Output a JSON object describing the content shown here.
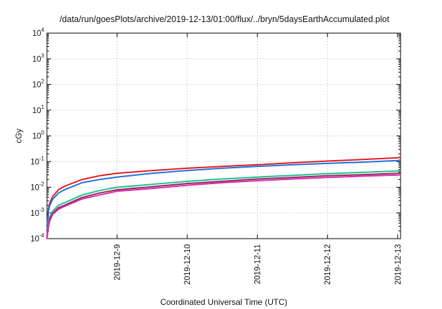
{
  "chart_data": {
    "type": "line",
    "title": "/data/run/goesPlots/archive/2019-12-13/01:00/flux/../bryn/5daysEarthAccumulated.plot",
    "xlabel": "Coordinated Universal Time (UTC)",
    "ylabel": "cGy",
    "y_scale": "log",
    "ylim": [
      0.0001,
      10000
    ],
    "xlim": [
      "2019-12-08 00:00",
      "2019-12-13 01:00"
    ],
    "y_ticks": [
      {
        "base": "10",
        "exp": "-4",
        "value": 0.0001
      },
      {
        "base": "10",
        "exp": "-3",
        "value": 0.001
      },
      {
        "base": "10",
        "exp": "-2",
        "value": 0.01
      },
      {
        "base": "10",
        "exp": "-1",
        "value": 0.1
      },
      {
        "base": "10",
        "exp": "0",
        "value": 1
      },
      {
        "base": "10",
        "exp": "1",
        "value": 10
      },
      {
        "base": "10",
        "exp": "2",
        "value": 100
      },
      {
        "base": "10",
        "exp": "3",
        "value": 1000
      },
      {
        "base": "10",
        "exp": "4",
        "value": 10000
      }
    ],
    "x_ticks": [
      {
        "label": "2019-12-9",
        "value": "2019-12-09 00:00"
      },
      {
        "label": "2019-12-10",
        "value": "2019-12-10 00:00"
      },
      {
        "label": "2019-12-11",
        "value": "2019-12-11 00:00"
      },
      {
        "label": "2019-12-12",
        "value": "2019-12-12 00:00"
      },
      {
        "label": "2019-12-13",
        "value": "2019-12-13 00:00"
      }
    ],
    "grid": true,
    "legend": "none",
    "x": [
      "2019-12-08 00:00",
      "2019-12-08 00:30",
      "2019-12-08 01:00",
      "2019-12-08 02:00",
      "2019-12-08 04:00",
      "2019-12-08 06:00",
      "2019-12-08 12:00",
      "2019-12-08 18:00",
      "2019-12-09 00:00",
      "2019-12-09 12:00",
      "2019-12-10 00:00",
      "2019-12-10 12:00",
      "2019-12-11 00:00",
      "2019-12-11 12:00",
      "2019-12-12 00:00",
      "2019-12-12 12:00",
      "2019-12-13 00:00",
      "2019-12-13 01:00"
    ],
    "series": [
      {
        "color": "#e41a1c",
        "values": [
          0.0003,
          0.0015,
          0.0025,
          0.0045,
          0.008,
          0.011,
          0.02,
          0.028,
          0.035,
          0.045,
          0.055,
          0.065,
          0.075,
          0.09,
          0.105,
          0.12,
          0.14,
          0.15
        ]
      },
      {
        "color": "#1f6fe0",
        "values": [
          0.0002,
          0.0012,
          0.002,
          0.0035,
          0.006,
          0.008,
          0.015,
          0.02,
          0.025,
          0.035,
          0.045,
          0.055,
          0.065,
          0.075,
          0.085,
          0.095,
          0.11,
          0.115
        ]
      },
      {
        "color": "#1fbf8a",
        "values": [
          0.00012,
          0.0004,
          0.0007,
          0.0012,
          0.002,
          0.0025,
          0.005,
          0.0075,
          0.01,
          0.013,
          0.017,
          0.021,
          0.025,
          0.029,
          0.034,
          0.038,
          0.043,
          0.045
        ]
      },
      {
        "color": "#8b2a5a",
        "values": [
          0.00011,
          0.0003,
          0.0006,
          0.001,
          0.0016,
          0.002,
          0.004,
          0.006,
          0.008,
          0.0105,
          0.014,
          0.017,
          0.021,
          0.024,
          0.028,
          0.031,
          0.035,
          0.036
        ]
      },
      {
        "color": "#e024b0",
        "values": [
          0.0001,
          0.00028,
          0.0005,
          0.0009,
          0.0014,
          0.0018,
          0.0035,
          0.005,
          0.007,
          0.009,
          0.012,
          0.015,
          0.018,
          0.021,
          0.024,
          0.027,
          0.03,
          0.031
        ]
      }
    ]
  }
}
